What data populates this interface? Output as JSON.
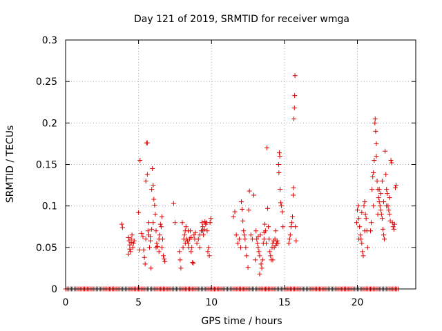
{
  "chart_data": {
    "type": "scatter",
    "title": "Day 121 of 2019, SRMTID for receiver wmga",
    "xlabel": "GPS time / hours",
    "ylabel": "SRMTID / TECUs",
    "xlim": [
      0,
      24
    ],
    "ylim": [
      0,
      0.3
    ],
    "x_ticks": [
      0,
      5,
      10,
      15,
      20
    ],
    "x_tick_labels": [
      "0",
      "5",
      "10",
      "15",
      "20"
    ],
    "y_ticks": [
      0,
      0.05,
      0.1,
      0.15,
      0.2,
      0.25,
      0.3
    ],
    "y_tick_labels": [
      "0",
      "0.05",
      "0.1",
      "0.15",
      "0.2",
      "0.25",
      "0.3"
    ],
    "grid": true,
    "marker": "+",
    "color": "#dd0000",
    "baseline_series": {
      "name": "zero values",
      "y": 0,
      "x_start": 0.0,
      "x_end": 22.8,
      "x_step": 0.1
    },
    "series": [
      {
        "name": "SRMTID",
        "points": [
          [
            3.85,
            0.078
          ],
          [
            3.9,
            0.074
          ],
          [
            4.3,
            0.062
          ],
          [
            4.35,
            0.058
          ],
          [
            4.4,
            0.053
          ],
          [
            4.45,
            0.045
          ],
          [
            4.5,
            0.06
          ],
          [
            4.55,
            0.065
          ],
          [
            4.6,
            0.05
          ],
          [
            4.65,
            0.055
          ],
          [
            4.3,
            0.042
          ],
          [
            4.4,
            0.048
          ],
          [
            4.5,
            0.056
          ],
          [
            4.7,
            0.058
          ],
          [
            5.0,
            0.092
          ],
          [
            5.05,
            0.047
          ],
          [
            5.1,
            0.155
          ],
          [
            5.2,
            0.067
          ],
          [
            5.3,
            0.063
          ],
          [
            5.35,
            0.047
          ],
          [
            5.4,
            0.038
          ],
          [
            5.45,
            0.03
          ],
          [
            5.5,
            0.06
          ],
          [
            5.5,
            0.13
          ],
          [
            5.55,
            0.176
          ],
          [
            5.6,
            0.138
          ],
          [
            5.6,
            0.176
          ],
          [
            5.65,
            0.07
          ],
          [
            5.7,
            0.08
          ],
          [
            5.75,
            0.05
          ],
          [
            5.8,
            0.063
          ],
          [
            5.85,
            0.025
          ],
          [
            5.9,
            0.12
          ],
          [
            5.95,
            0.145
          ],
          [
            6.0,
            0.125
          ],
          [
            6.05,
            0.108
          ],
          [
            6.1,
            0.101
          ],
          [
            6.15,
            0.09
          ],
          [
            6.2,
            0.07
          ],
          [
            6.25,
            0.055
          ],
          [
            6.3,
            0.051
          ],
          [
            6.4,
            0.045
          ],
          [
            6.45,
            0.065
          ],
          [
            6.5,
            0.078
          ],
          [
            6.55,
            0.075
          ],
          [
            6.6,
            0.087
          ],
          [
            6.65,
            0.06
          ],
          [
            6.7,
            0.04
          ],
          [
            6.75,
            0.036
          ],
          [
            6.8,
            0.033
          ],
          [
            5.7,
            0.065
          ],
          [
            5.8,
            0.058
          ],
          [
            5.9,
            0.072
          ],
          [
            6.0,
            0.08
          ],
          [
            6.2,
            0.05
          ],
          [
            6.4,
            0.06
          ],
          [
            6.6,
            0.05
          ],
          [
            7.4,
            0.103
          ],
          [
            7.5,
            0.08
          ],
          [
            7.8,
            0.045
          ],
          [
            7.85,
            0.035
          ],
          [
            7.9,
            0.025
          ],
          [
            8.0,
            0.08
          ],
          [
            8.05,
            0.05
          ],
          [
            8.1,
            0.06
          ],
          [
            8.15,
            0.065
          ],
          [
            8.2,
            0.07
          ],
          [
            8.25,
            0.075
          ],
          [
            8.3,
            0.06
          ],
          [
            8.35,
            0.058
          ],
          [
            8.4,
            0.055
          ],
          [
            8.45,
            0.05
          ],
          [
            8.5,
            0.06
          ],
          [
            8.55,
            0.07
          ],
          [
            8.6,
            0.045
          ],
          [
            8.65,
            0.05
          ],
          [
            8.7,
            0.032
          ],
          [
            8.75,
            0.031
          ],
          [
            8.8,
            0.065
          ],
          [
            8.85,
            0.06
          ],
          [
            8.9,
            0.068
          ],
          [
            9.0,
            0.055
          ],
          [
            9.1,
            0.06
          ],
          [
            9.2,
            0.065
          ],
          [
            9.3,
            0.07
          ],
          [
            9.35,
            0.08
          ],
          [
            9.4,
            0.075
          ],
          [
            9.45,
            0.065
          ],
          [
            9.5,
            0.072
          ],
          [
            9.55,
            0.081
          ],
          [
            9.6,
            0.078
          ],
          [
            9.65,
            0.08
          ],
          [
            9.7,
            0.07
          ],
          [
            9.75,
            0.045
          ],
          [
            9.8,
            0.05
          ],
          [
            9.85,
            0.04
          ],
          [
            9.9,
            0.08
          ],
          [
            9.95,
            0.085
          ],
          [
            9.2,
            0.05
          ],
          [
            9.4,
            0.07
          ],
          [
            8.2,
            0.055
          ],
          [
            8.4,
            0.07
          ],
          [
            8.6,
            0.062
          ],
          [
            11.5,
            0.087
          ],
          [
            11.6,
            0.093
          ],
          [
            11.7,
            0.065
          ],
          [
            11.8,
            0.055
          ],
          [
            11.9,
            0.06
          ],
          [
            12.0,
            0.05
          ],
          [
            12.05,
            0.105
          ],
          [
            12.1,
            0.096
          ],
          [
            12.15,
            0.082
          ],
          [
            12.2,
            0.07
          ],
          [
            12.25,
            0.065
          ],
          [
            12.3,
            0.06
          ],
          [
            12.35,
            0.05
          ],
          [
            12.4,
            0.04
          ],
          [
            12.5,
            0.026
          ],
          [
            12.55,
            0.095
          ],
          [
            12.6,
            0.118
          ],
          [
            12.7,
            0.065
          ],
          [
            12.8,
            0.06
          ],
          [
            12.9,
            0.113
          ],
          [
            13.0,
            0.035
          ],
          [
            13.05,
            0.07
          ],
          [
            13.1,
            0.06
          ],
          [
            13.15,
            0.055
          ],
          [
            13.2,
            0.05
          ],
          [
            13.25,
            0.045
          ],
          [
            13.3,
            0.04
          ],
          [
            13.35,
            0.065
          ],
          [
            13.4,
            0.03
          ],
          [
            13.45,
            0.025
          ],
          [
            13.5,
            0.035
          ],
          [
            13.55,
            0.055
          ],
          [
            13.6,
            0.068
          ],
          [
            13.65,
            0.078
          ],
          [
            13.7,
            0.07
          ],
          [
            13.75,
            0.055
          ],
          [
            13.8,
            0.17
          ],
          [
            13.85,
            0.097
          ],
          [
            13.9,
            0.075
          ],
          [
            13.95,
            0.06
          ],
          [
            14.0,
            0.045
          ],
          [
            14.05,
            0.04
          ],
          [
            14.1,
            0.035
          ],
          [
            14.15,
            0.05
          ],
          [
            14.2,
            0.055
          ],
          [
            14.25,
            0.058
          ],
          [
            14.3,
            0.05
          ],
          [
            14.35,
            0.06
          ],
          [
            14.4,
            0.052
          ],
          [
            14.45,
            0.055
          ],
          [
            14.5,
            0.058
          ],
          [
            14.55,
            0.055
          ],
          [
            14.6,
            0.15
          ],
          [
            14.62,
            0.14
          ],
          [
            14.65,
            0.164
          ],
          [
            14.68,
            0.16
          ],
          [
            14.7,
            0.12
          ],
          [
            14.75,
            0.104
          ],
          [
            14.8,
            0.1
          ],
          [
            14.85,
            0.093
          ],
          [
            14.9,
            0.075
          ],
          [
            13.3,
            0.018
          ],
          [
            13.2,
            0.063
          ],
          [
            13.6,
            0.06
          ],
          [
            14.2,
            0.035
          ],
          [
            14.4,
            0.07
          ],
          [
            15.3,
            0.055
          ],
          [
            15.35,
            0.06
          ],
          [
            15.4,
            0.065
          ],
          [
            15.45,
            0.075
          ],
          [
            15.5,
            0.08
          ],
          [
            15.55,
            0.087
          ],
          [
            15.6,
            0.113
          ],
          [
            15.62,
            0.122
          ],
          [
            15.65,
            0.205
          ],
          [
            15.68,
            0.218
          ],
          [
            15.7,
            0.233
          ],
          [
            15.72,
            0.257
          ],
          [
            15.75,
            0.075
          ],
          [
            15.8,
            0.058
          ],
          [
            19.95,
            0.08
          ],
          [
            20.0,
            0.095
          ],
          [
            20.05,
            0.1
          ],
          [
            20.1,
            0.085
          ],
          [
            20.15,
            0.075
          ],
          [
            20.2,
            0.065
          ],
          [
            20.25,
            0.06
          ],
          [
            20.3,
            0.055
          ],
          [
            20.35,
            0.045
          ],
          [
            20.4,
            0.04
          ],
          [
            20.45,
            0.1
          ],
          [
            20.5,
            0.105
          ],
          [
            20.55,
            0.09
          ],
          [
            20.6,
            0.085
          ],
          [
            20.65,
            0.07
          ],
          [
            20.7,
            0.05
          ],
          [
            20.1,
            0.06
          ],
          [
            20.3,
            0.092
          ],
          [
            20.5,
            0.07
          ],
          [
            20.9,
            0.07
          ],
          [
            20.95,
            0.08
          ],
          [
            21.0,
            0.12
          ],
          [
            21.05,
            0.135
          ],
          [
            21.1,
            0.14
          ],
          [
            21.15,
            0.155
          ],
          [
            21.2,
            0.2
          ],
          [
            21.22,
            0.205
          ],
          [
            21.25,
            0.19
          ],
          [
            21.3,
            0.175
          ],
          [
            21.35,
            0.13
          ],
          [
            21.4,
            0.12
          ],
          [
            21.45,
            0.11
          ],
          [
            21.5,
            0.105
          ],
          [
            21.55,
            0.1
          ],
          [
            21.6,
            0.095
          ],
          [
            21.65,
            0.09
          ],
          [
            21.7,
            0.085
          ],
          [
            21.75,
            0.072
          ],
          [
            21.8,
            0.065
          ],
          [
            21.85,
            0.06
          ],
          [
            21.9,
            0.166
          ],
          [
            21.95,
            0.138
          ],
          [
            22.0,
            0.12
          ],
          [
            22.05,
            0.115
          ],
          [
            22.1,
            0.1
          ],
          [
            22.15,
            0.095
          ],
          [
            22.2,
            0.09
          ],
          [
            22.25,
            0.082
          ],
          [
            22.3,
            0.155
          ],
          [
            22.35,
            0.152
          ],
          [
            22.4,
            0.08
          ],
          [
            22.45,
            0.075
          ],
          [
            22.5,
            0.072
          ],
          [
            22.55,
            0.078
          ],
          [
            22.6,
            0.122
          ],
          [
            22.65,
            0.125
          ],
          [
            21.3,
            0.16
          ],
          [
            21.5,
            0.12
          ],
          [
            21.6,
            0.115
          ],
          [
            21.7,
            0.13
          ],
          [
            21.8,
            0.105
          ],
          [
            22.0,
            0.1
          ],
          [
            22.2,
            0.11
          ],
          [
            21.1,
            0.1
          ],
          [
            21.4,
            0.09
          ]
        ]
      }
    ]
  }
}
